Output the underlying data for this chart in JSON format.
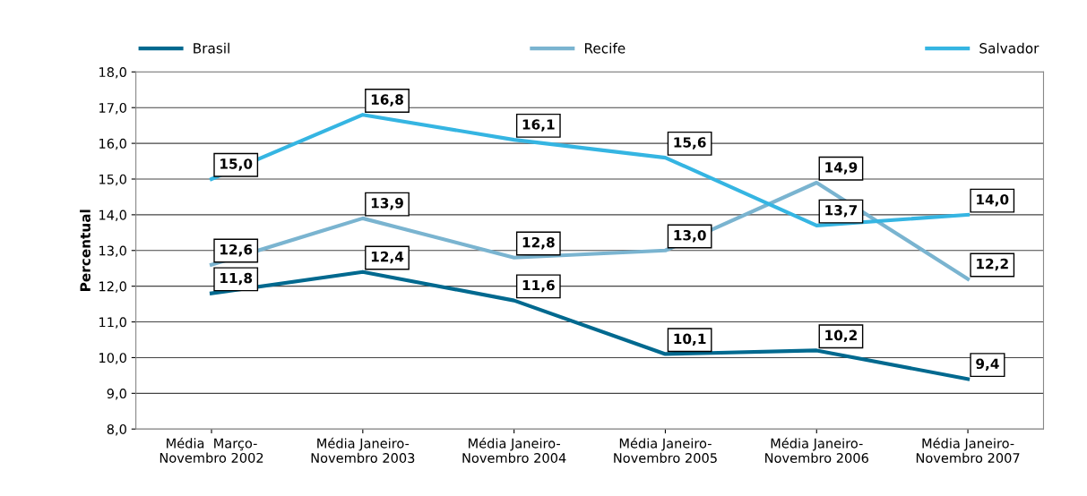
{
  "chart_data": {
    "type": "line",
    "ylabel": "Percentual",
    "categories": [
      "Média  Março-\nNovembro 2002",
      "Média Janeiro-\nNovembro 2003",
      "Média Janeiro-\nNovembro 2004",
      "Média Janeiro-\nNovembro 2005",
      "Média Janeiro-\nNovembro 2006",
      "Média Janeiro-\nNovembro 2007"
    ],
    "series": [
      {
        "name": "Brasil",
        "color": "#00698f",
        "values": [
          11.8,
          12.4,
          11.6,
          10.1,
          10.2,
          9.4
        ],
        "value_labels": [
          "11,8",
          "12,4",
          "11,6",
          "10,1",
          "10,2",
          "9,4"
        ]
      },
      {
        "name": "Recife",
        "color": "#7ab4d0",
        "values": [
          12.6,
          13.9,
          12.8,
          13.0,
          14.9,
          12.2
        ],
        "value_labels": [
          "12,6",
          "13,9",
          "12,8",
          "13,0",
          "14,9",
          "12,2"
        ]
      },
      {
        "name": "Salvador",
        "color": "#35b5e2",
        "values": [
          15.0,
          16.8,
          16.1,
          15.6,
          13.7,
          14.0
        ],
        "value_labels": [
          "15,0",
          "16,8",
          "16,1",
          "15,6",
          "13,7",
          "14,0"
        ]
      }
    ],
    "ylim": [
      8,
      18
    ],
    "yticks": [
      {
        "value": 8,
        "label": "8,0"
      },
      {
        "value": 9,
        "label": "9,0"
      },
      {
        "value": 10,
        "label": "10,0"
      },
      {
        "value": 11,
        "label": "11,0"
      },
      {
        "value": 12,
        "label": "12,0"
      },
      {
        "value": 13,
        "label": "13,0"
      },
      {
        "value": 14,
        "label": "14,0"
      },
      {
        "value": 15,
        "label": "15,0"
      },
      {
        "value": 16,
        "label": "16,0"
      },
      {
        "value": 17,
        "label": "17,0"
      },
      {
        "value": 18,
        "label": "18,0"
      }
    ],
    "grid": "y",
    "legend": "top",
    "marker": "none",
    "line_style": "solid"
  }
}
